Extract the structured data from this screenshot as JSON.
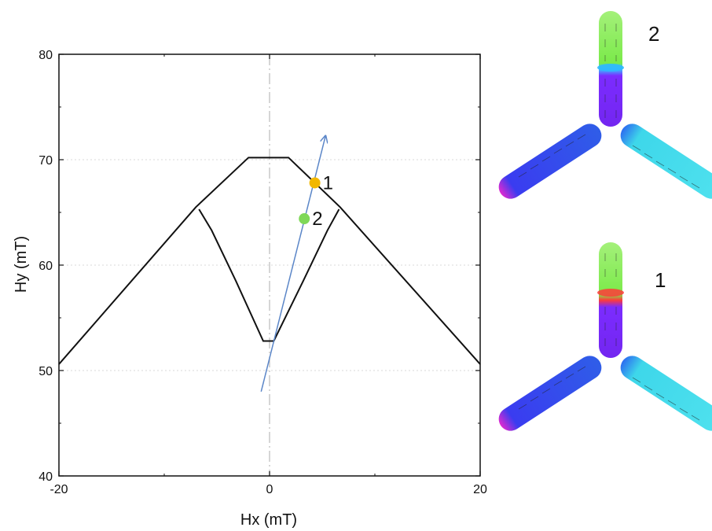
{
  "chart_data": {
    "type": "line",
    "xlabel": "Hx (mT)",
    "ylabel": "Hy (mT)",
    "xlim": [
      -20,
      20
    ],
    "ylim": [
      40,
      80
    ],
    "x_ticks": [
      -20,
      0,
      20
    ],
    "y_ticks": [
      40,
      50,
      60,
      70,
      80
    ],
    "grid": "dashed minor grid at Hy = 50, 60, 70",
    "vertical_reference_line": 0,
    "series": [
      {
        "color": "#111111",
        "x": [
          -20,
          -7.0,
          -2.0,
          1.8,
          6.7,
          20
        ],
        "y": [
          50.6,
          65.5,
          70.2,
          70.2,
          65.5,
          50.6
        ],
        "style": "solid"
      },
      {
        "color": "#111111",
        "x": [
          -6.7,
          -5.5,
          -3.2,
          -0.6,
          0.4,
          3.2,
          5.5,
          6.6
        ],
        "y": [
          65.3,
          63.3,
          58.5,
          52.8,
          52.8,
          58.5,
          63.3,
          65.3
        ],
        "style": "solid"
      }
    ],
    "arrow": {
      "color": "#5b86c8",
      "from": [
        -0.8,
        48.0
      ],
      "to": [
        5.3,
        72.2
      ]
    },
    "points": [
      {
        "label": "1",
        "x": 4.3,
        "y": 67.8,
        "color": "#f2b800"
      },
      {
        "label": "2",
        "x": 3.3,
        "y": 64.4,
        "color": "#7fd858"
      }
    ]
  },
  "panels": [
    {
      "label": "2"
    },
    {
      "label": "1"
    }
  ],
  "colors": {
    "axis": "#111111",
    "grid": "#d8d8d8",
    "vertical_ref": "#bbbbbb",
    "arm_top": [
      "#9ef07a",
      "#7a2cff"
    ],
    "arm_left": "#2647e8",
    "arm_right": "#37dbe6",
    "tip_magenta": "#e02ad0"
  }
}
